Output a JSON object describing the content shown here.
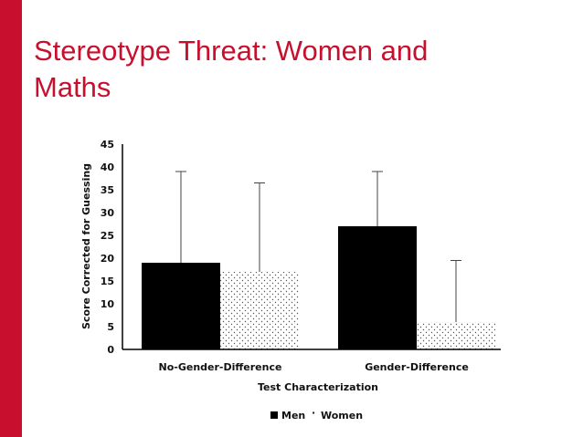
{
  "slide": {
    "title_line1": "Stereotype Threat: Women and",
    "title_line2": "Maths"
  },
  "colors": {
    "accent": "#c8102e",
    "men_bar": "#000000",
    "women_dots": "#555555"
  },
  "chart_data": {
    "type": "bar",
    "title": "",
    "xlabel": "Test Characterization",
    "ylabel": "Score Corrected for Guessing",
    "ylim": [
      0,
      45
    ],
    "yticks": [
      0,
      5,
      10,
      15,
      20,
      25,
      30,
      35,
      40,
      45
    ],
    "categories": [
      "No-Gender-Difference",
      "Gender-Difference"
    ],
    "series": [
      {
        "name": "Men",
        "values": [
          19,
          27
        ],
        "error_upper": [
          39,
          39
        ]
      },
      {
        "name": "Women",
        "values": [
          17,
          6
        ],
        "error_upper": [
          36.5,
          19.5
        ]
      }
    ],
    "legend": {
      "placement": "bottom-center",
      "separator": "·"
    }
  }
}
